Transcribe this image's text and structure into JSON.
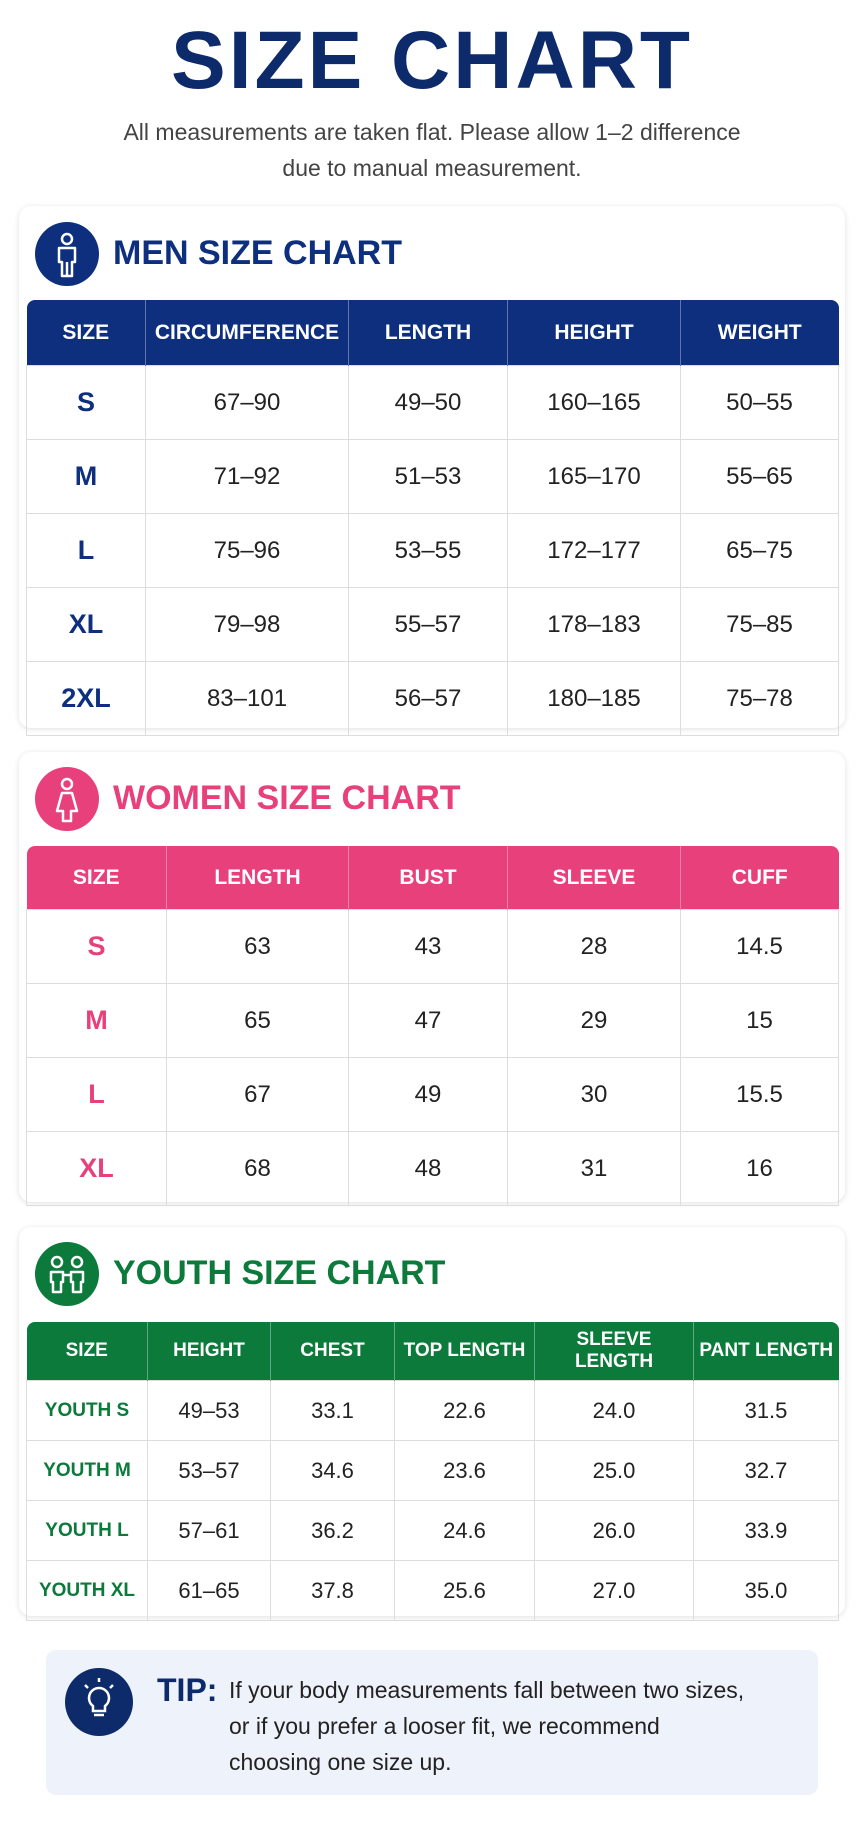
{
  "title": "SIZE CHART",
  "subtitle": [
    "All measurements are taken flat. Please allow 1–2 difference",
    "due to manual measurement."
  ],
  "sections": [
    {
      "heading": "MEN SIZE CHART",
      "columns": [
        "SIZE",
        "CIRCUMFERENCE",
        "LENGTH",
        "HEIGHT",
        "WEIGHT"
      ],
      "rows": [
        [
          "S",
          "67–90",
          "49–50",
          "160–165",
          "50–55"
        ],
        [
          "M",
          "71–92",
          "51–53",
          "165–170",
          "55–65"
        ],
        [
          "L",
          "75–96",
          "53–55",
          "172–177",
          "65–75"
        ],
        [
          "XL",
          "79–98",
          "55–57",
          "178–183",
          "75–85"
        ],
        [
          "2XL",
          "83–101",
          "56–57",
          "180–185",
          "75–78"
        ]
      ]
    },
    {
      "heading": "WOMEN SIZE CHART",
      "columns": [
        "SIZE",
        "LENGTH",
        "BUST",
        "SLEEVE",
        "CUFF"
      ],
      "rows": [
        [
          "S",
          "63",
          "43",
          "28",
          "14.5"
        ],
        [
          "M",
          "65",
          "47",
          "29",
          "15"
        ],
        [
          "L",
          "67",
          "49",
          "30",
          "15.5"
        ],
        [
          "XL",
          "68",
          "48",
          "31",
          "16"
        ]
      ]
    },
    {
      "heading": "YOUTH SIZE CHART",
      "columns": [
        "SIZE",
        "HEIGHT",
        "CHEST",
        "TOP LENGTH",
        "SLEEVE LENGTH",
        "PANT LENGTH"
      ],
      "rows": [
        [
          "YOUTH S",
          "49–53",
          "33.1",
          "22.6",
          "24.0",
          "31.5"
        ],
        [
          "YOUTH M",
          "53–57",
          "34.6",
          "23.6",
          "25.0",
          "32.7"
        ],
        [
          "YOUTH L",
          "57–61",
          "36.2",
          "24.6",
          "26.0",
          "33.9"
        ],
        [
          "YOUTH XL",
          "61–65",
          "37.8",
          "25.6",
          "27.0",
          "35.0"
        ]
      ]
    }
  ],
  "tip": {
    "label": "TIP:",
    "lines": [
      "If your body measurements fall between two sizes,",
      "or if you prefer a looser fit, we recommend",
      "choosing one size up."
    ]
  }
}
